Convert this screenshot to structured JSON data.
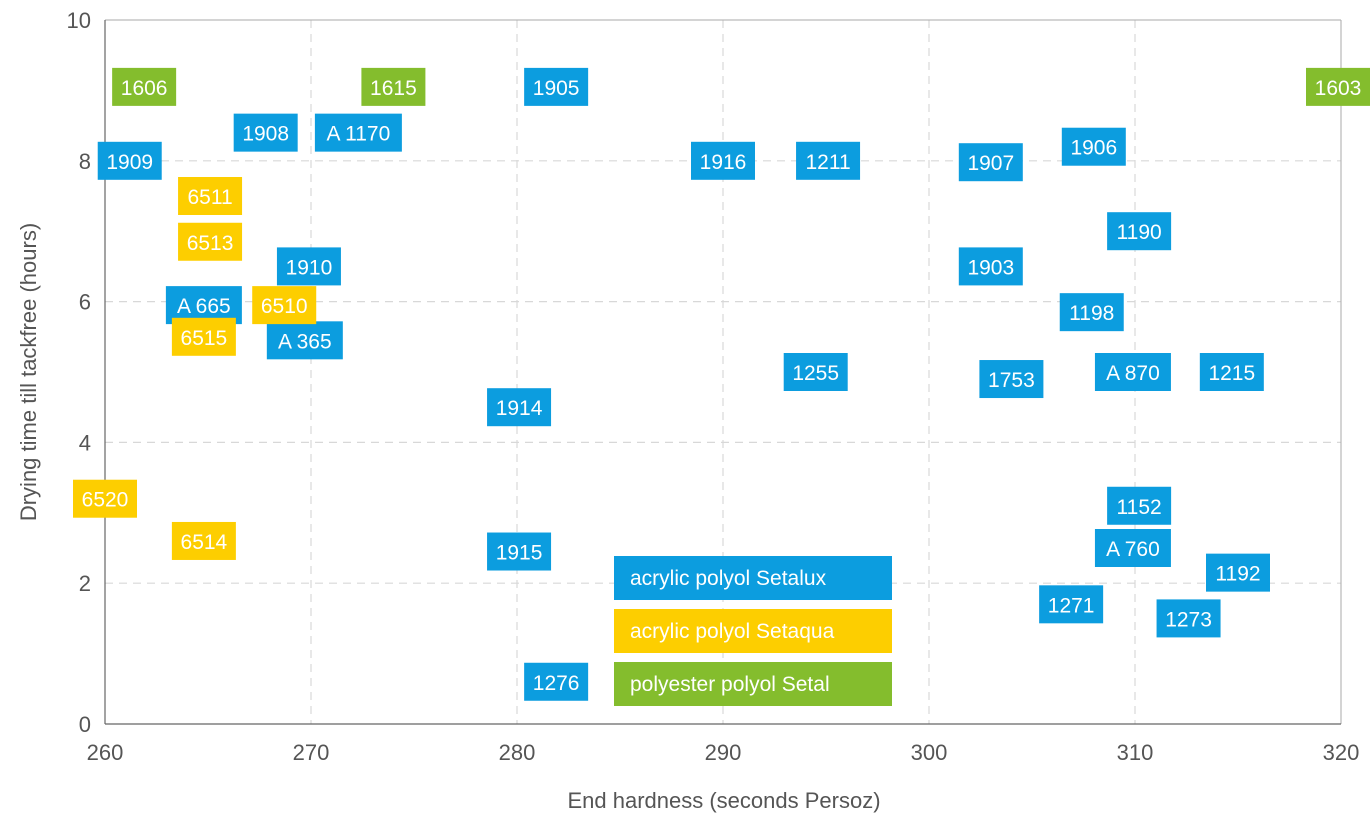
{
  "colors": {
    "setalux": "#0c9ddf",
    "setaqua": "#fdce00",
    "setal": "#84bd2d",
    "grid": "#d8d8d8",
    "axis": "#666666",
    "text": "#555555"
  },
  "chart_data": {
    "type": "scatter",
    "title": "",
    "xlabel": "End hardness (seconds Persoz)",
    "ylabel": "Drying time till tackfree (hours)",
    "xlim": [
      260,
      320
    ],
    "ylim": [
      0,
      10
    ],
    "xticks": [
      "260",
      "270",
      "280",
      "290",
      "300",
      "310",
      "320"
    ],
    "yticks": [
      "0",
      "2",
      "4",
      "6",
      "8",
      "10"
    ],
    "grid": true,
    "legend_placement": "bottom-center",
    "series": [
      {
        "name": "acrylic polyol Setalux",
        "color_key": "setalux",
        "points": [
          {
            "label": "1909",
            "x": 261.2,
            "y": 8.0
          },
          {
            "label": "1908",
            "x": 267.8,
            "y": 8.4
          },
          {
            "label": "A 1170",
            "x": 272.3,
            "y": 8.4
          },
          {
            "label": "1905",
            "x": 281.9,
            "y": 9.05
          },
          {
            "label": "1916",
            "x": 290.0,
            "y": 8.0
          },
          {
            "label": "1211",
            "x": 295.1,
            "y": 8.0
          },
          {
            "label": "1907",
            "x": 303.0,
            "y": 7.98
          },
          {
            "label": "1906",
            "x": 308.0,
            "y": 8.2
          },
          {
            "label": "1190",
            "x": 310.2,
            "y": 7.0
          },
          {
            "label": "1910",
            "x": 269.9,
            "y": 6.5
          },
          {
            "label": "1903",
            "x": 303.0,
            "y": 6.5
          },
          {
            "label": "A 665",
            "x": 264.8,
            "y": 5.95
          },
          {
            "label": "1198",
            "x": 307.9,
            "y": 5.85
          },
          {
            "label": "A 365",
            "x": 269.7,
            "y": 5.45
          },
          {
            "label": "1255",
            "x": 294.5,
            "y": 5.0
          },
          {
            "label": "1753",
            "x": 304.0,
            "y": 4.9
          },
          {
            "label": "A 870",
            "x": 309.9,
            "y": 5.0
          },
          {
            "label": "1215",
            "x": 314.7,
            "y": 5.0
          },
          {
            "label": "1914",
            "x": 280.1,
            "y": 4.5
          },
          {
            "label": "1152",
            "x": 310.2,
            "y": 3.1
          },
          {
            "label": "1915",
            "x": 280.1,
            "y": 2.45
          },
          {
            "label": "A 760",
            "x": 309.9,
            "y": 2.5
          },
          {
            "label": "1192",
            "x": 315.0,
            "y": 2.15
          },
          {
            "label": "1271",
            "x": 306.9,
            "y": 1.7
          },
          {
            "label": "1273",
            "x": 312.6,
            "y": 1.5
          },
          {
            "label": "1276",
            "x": 281.9,
            "y": 0.6
          }
        ]
      },
      {
        "name": "acrylic polyol Setaqua",
        "color_key": "setaqua",
        "points": [
          {
            "label": "6511",
            "x": 265.1,
            "y": 7.5
          },
          {
            "label": "6513",
            "x": 265.1,
            "y": 6.85
          },
          {
            "label": "6510",
            "x": 268.7,
            "y": 5.95
          },
          {
            "label": "6515",
            "x": 264.8,
            "y": 5.5
          },
          {
            "label": "6520",
            "x": 260.0,
            "y": 3.2
          },
          {
            "label": "6514",
            "x": 264.8,
            "y": 2.6
          }
        ]
      },
      {
        "name": "polyester polyol Setal",
        "color_key": "setal",
        "points": [
          {
            "label": "1606",
            "x": 261.9,
            "y": 9.05
          },
          {
            "label": "1615",
            "x": 274.0,
            "y": 9.05
          },
          {
            "label": "1603",
            "x": 320.0,
            "y": 9.05
          }
        ]
      }
    ]
  }
}
